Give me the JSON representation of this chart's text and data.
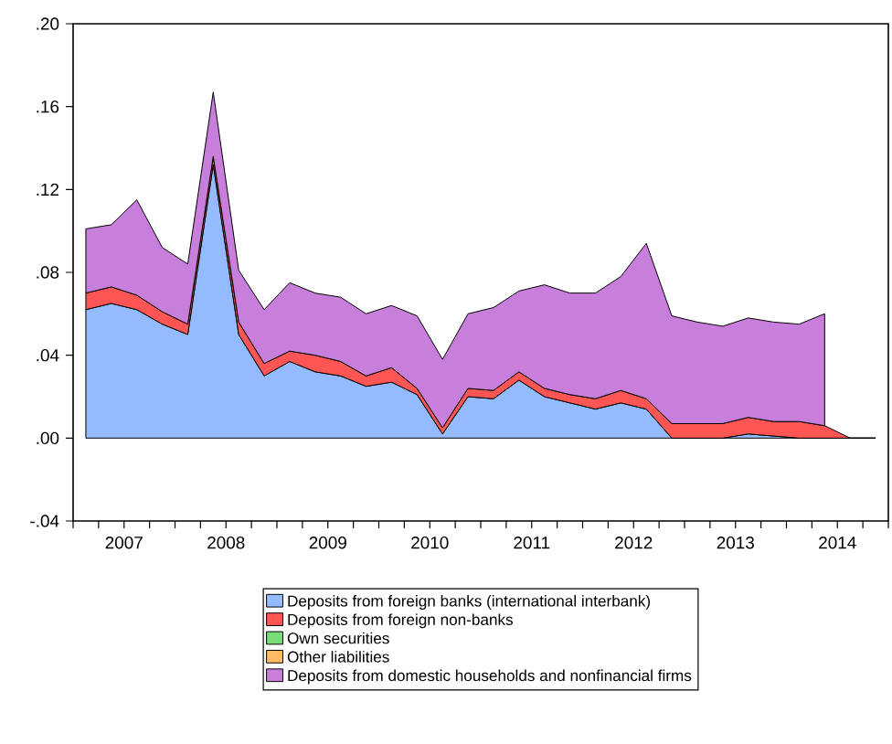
{
  "chart_data": {
    "type": "area",
    "stacked": true,
    "x": [
      2007.125,
      2007.375,
      2007.625,
      2007.875,
      2008.125,
      2008.375,
      2008.625,
      2008.875,
      2009.125,
      2009.375,
      2009.625,
      2009.875,
      2010.125,
      2010.375,
      2010.625,
      2010.875,
      2011.125,
      2011.375,
      2011.625,
      2011.875,
      2012.125,
      2012.375,
      2012.625,
      2012.875,
      2013.125,
      2013.375,
      2013.625,
      2013.875,
      2014.125,
      2014.375,
      2014.625,
      2014.875
    ],
    "series": [
      {
        "name": "Deposits from foreign banks (international interbank)",
        "color": "#94baff",
        "values": [
          0.062,
          0.065,
          0.062,
          0.055,
          0.05,
          0.132,
          0.05,
          0.03,
          0.037,
          0.032,
          0.03,
          0.025,
          0.027,
          0.021,
          0.002,
          0.02,
          0.019,
          0.028,
          0.02,
          0.017,
          0.014,
          0.017,
          0.014,
          0,
          0,
          0,
          0.002,
          0.001,
          0,
          0,
          0,
          0
        ]
      },
      {
        "name": "Deposits from foreign non-banks",
        "color": "#ff5555",
        "values": [
          0.008,
          0.008,
          0.007,
          0.006,
          0.005,
          0.004,
          0.006,
          0.006,
          0.005,
          0.008,
          0.007,
          0.005,
          0.007,
          0.003,
          0.003,
          0.004,
          0.004,
          0.004,
          0.004,
          0.004,
          0.005,
          0.006,
          0.005,
          0.007,
          0.007,
          0.007,
          0.008,
          0.007,
          0.008,
          0.006,
          0,
          0
        ]
      },
      {
        "name": "Own securities",
        "color": "#77dd77",
        "values": [
          null,
          null,
          null,
          null,
          null,
          null,
          null,
          null,
          null,
          null,
          null,
          null,
          null,
          null,
          null,
          null,
          null,
          null,
          null,
          null,
          null,
          null,
          null,
          null,
          null,
          null,
          null,
          null,
          null,
          null,
          null,
          null
        ]
      },
      {
        "name": "Other liabilities",
        "color": "#ffbb66",
        "values": [
          null,
          null,
          null,
          null,
          null,
          null,
          null,
          null,
          null,
          null,
          null,
          null,
          null,
          null,
          null,
          null,
          null,
          null,
          null,
          null,
          null,
          null,
          null,
          null,
          null,
          null,
          null,
          null,
          null,
          null,
          null,
          null
        ]
      },
      {
        "name": "Deposits from domestic households and nonfinancial firms",
        "color": "#c87fdb",
        "values": [
          0.031,
          0.03,
          0.046,
          0.031,
          0.029,
          0.031,
          0.025,
          0.026,
          0.033,
          0.03,
          0.031,
          0.03,
          0.03,
          0.035,
          0.033,
          0.036,
          0.04,
          0.039,
          0.05,
          0.049,
          0.051,
          0.055,
          0.075,
          0.052,
          0.049,
          0.047,
          0.048,
          0.048,
          0.047,
          0.054,
          null,
          null
        ]
      }
    ],
    "xlim": [
      2007,
      2015
    ],
    "xticks": [
      {
        "value": 2007,
        "label": null
      },
      {
        "value": 2007.25,
        "label": null
      },
      {
        "value": 2007.5,
        "label": "2007"
      },
      {
        "value": 2007.75,
        "label": null
      },
      {
        "value": 2008,
        "label": null
      },
      {
        "value": 2008.25,
        "label": null
      },
      {
        "value": 2008.5,
        "label": "2008"
      },
      {
        "value": 2008.75,
        "label": null
      },
      {
        "value": 2009,
        "label": null
      },
      {
        "value": 2009.25,
        "label": null
      },
      {
        "value": 2009.5,
        "label": "2009"
      },
      {
        "value": 2009.75,
        "label": null
      },
      {
        "value": 2010,
        "label": null
      },
      {
        "value": 2010.25,
        "label": null
      },
      {
        "value": 2010.5,
        "label": "2010"
      },
      {
        "value": 2010.75,
        "label": null
      },
      {
        "value": 2011,
        "label": null
      },
      {
        "value": 2011.25,
        "label": null
      },
      {
        "value": 2011.5,
        "label": "2011"
      },
      {
        "value": 2011.75,
        "label": null
      },
      {
        "value": 2012,
        "label": null
      },
      {
        "value": 2012.25,
        "label": null
      },
      {
        "value": 2012.5,
        "label": "2012"
      },
      {
        "value": 2012.75,
        "label": null
      },
      {
        "value": 2013,
        "label": null
      },
      {
        "value": 2013.25,
        "label": null
      },
      {
        "value": 2013.5,
        "label": "2013"
      },
      {
        "value": 2013.75,
        "label": null
      },
      {
        "value": 2014,
        "label": null
      },
      {
        "value": 2014.25,
        "label": null
      },
      {
        "value": 2014.5,
        "label": "2014"
      },
      {
        "value": 2014.75,
        "label": null
      },
      {
        "value": 2015,
        "label": null
      }
    ],
    "ylim": [
      -0.04,
      0.2
    ],
    "yticks": [
      {
        "value": -0.04,
        "label": "-.04"
      },
      {
        "value": 0,
        "label": ".00"
      },
      {
        "value": 0.04,
        "label": ".04"
      },
      {
        "value": 0.08,
        "label": ".08"
      },
      {
        "value": 0.12,
        "label": ".12"
      },
      {
        "value": 0.16,
        "label": ".16"
      },
      {
        "value": 0.2,
        "label": ".20"
      }
    ],
    "legend": "bottom"
  }
}
